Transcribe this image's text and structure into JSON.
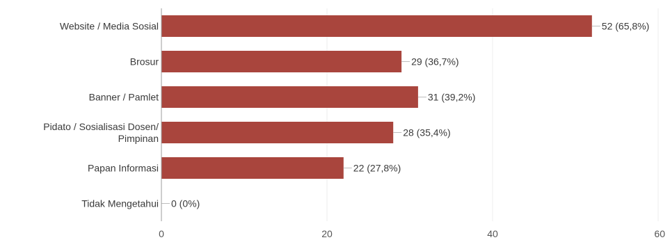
{
  "chart_data": {
    "type": "bar",
    "orientation": "horizontal",
    "title": "",
    "xlabel": "",
    "ylabel": "",
    "categories": [
      [
        "Website / Media Sosial"
      ],
      [
        "Brosur"
      ],
      [
        "Banner / Pamlet"
      ],
      [
        "Pidato / Sosialisasi Dosen/",
        "Pimpinan"
      ],
      [
        "Papan Informasi"
      ],
      [
        "Tidak Mengetahui"
      ]
    ],
    "values": [
      52,
      29,
      31,
      28,
      22,
      0
    ],
    "value_labels": [
      "52 (65,8%)",
      "29 (36,7%)",
      "31 (39,2%)",
      "28 (35,4%)",
      "22 (27,8%)",
      "0 (0%)"
    ],
    "xlim": [
      0,
      60
    ],
    "xticks": [
      0,
      20,
      40,
      60
    ],
    "grid": true,
    "bar_color": "#a9453d"
  }
}
